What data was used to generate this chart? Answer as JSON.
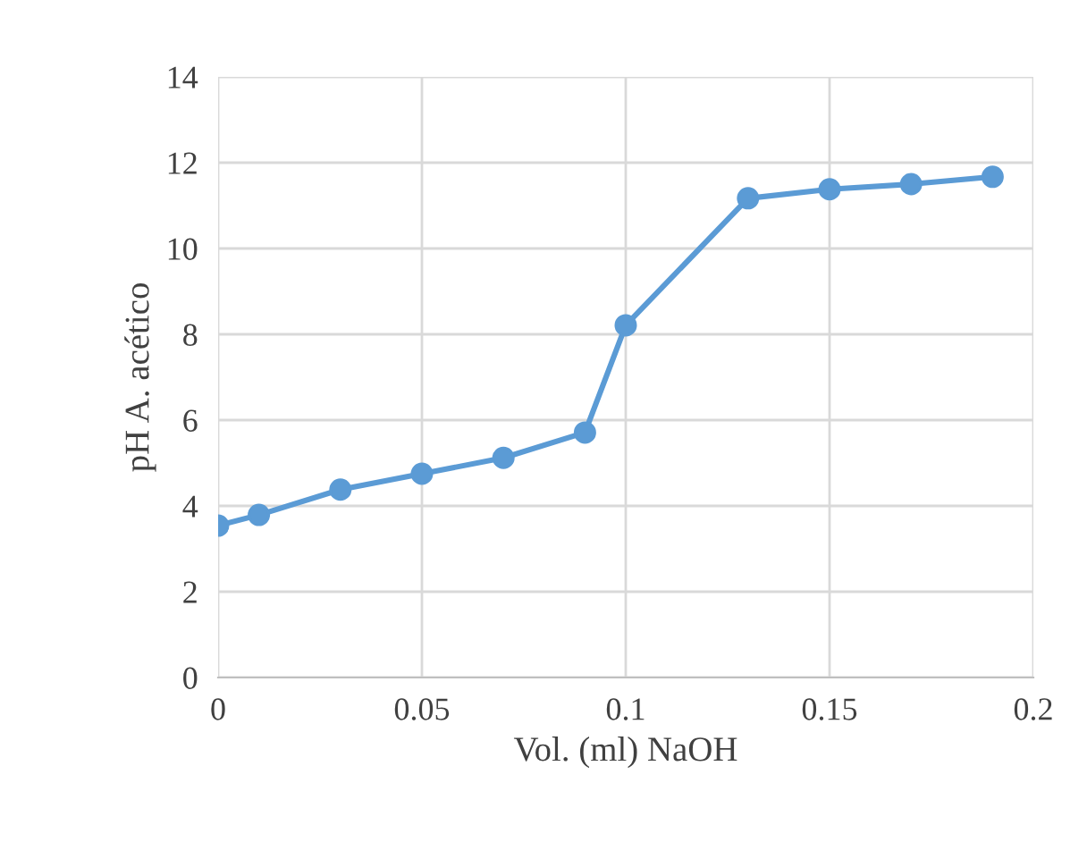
{
  "chart_data": {
    "type": "line",
    "xlabel": "Vol. (ml) NaOH",
    "ylabel": "pH A. acético",
    "x": [
      0,
      0.01,
      0.03,
      0.05,
      0.07,
      0.09,
      0.1,
      0.13,
      0.15,
      0.17,
      0.19
    ],
    "series": [
      {
        "color": "#5b9bd5",
        "values": [
          3.54,
          3.79,
          4.38,
          4.75,
          5.12,
          5.71,
          8.21,
          11.17,
          11.38,
          11.5,
          11.67
        ]
      }
    ],
    "xlim": [
      0,
      0.2
    ],
    "xticks": [
      0,
      0.05,
      0.1,
      0.15,
      0.2
    ],
    "ylim": [
      0,
      14
    ],
    "yticks": [
      0,
      2,
      4,
      6,
      8,
      10,
      12,
      14
    ],
    "grid": true,
    "marker": "circle",
    "line_style": "solid"
  }
}
